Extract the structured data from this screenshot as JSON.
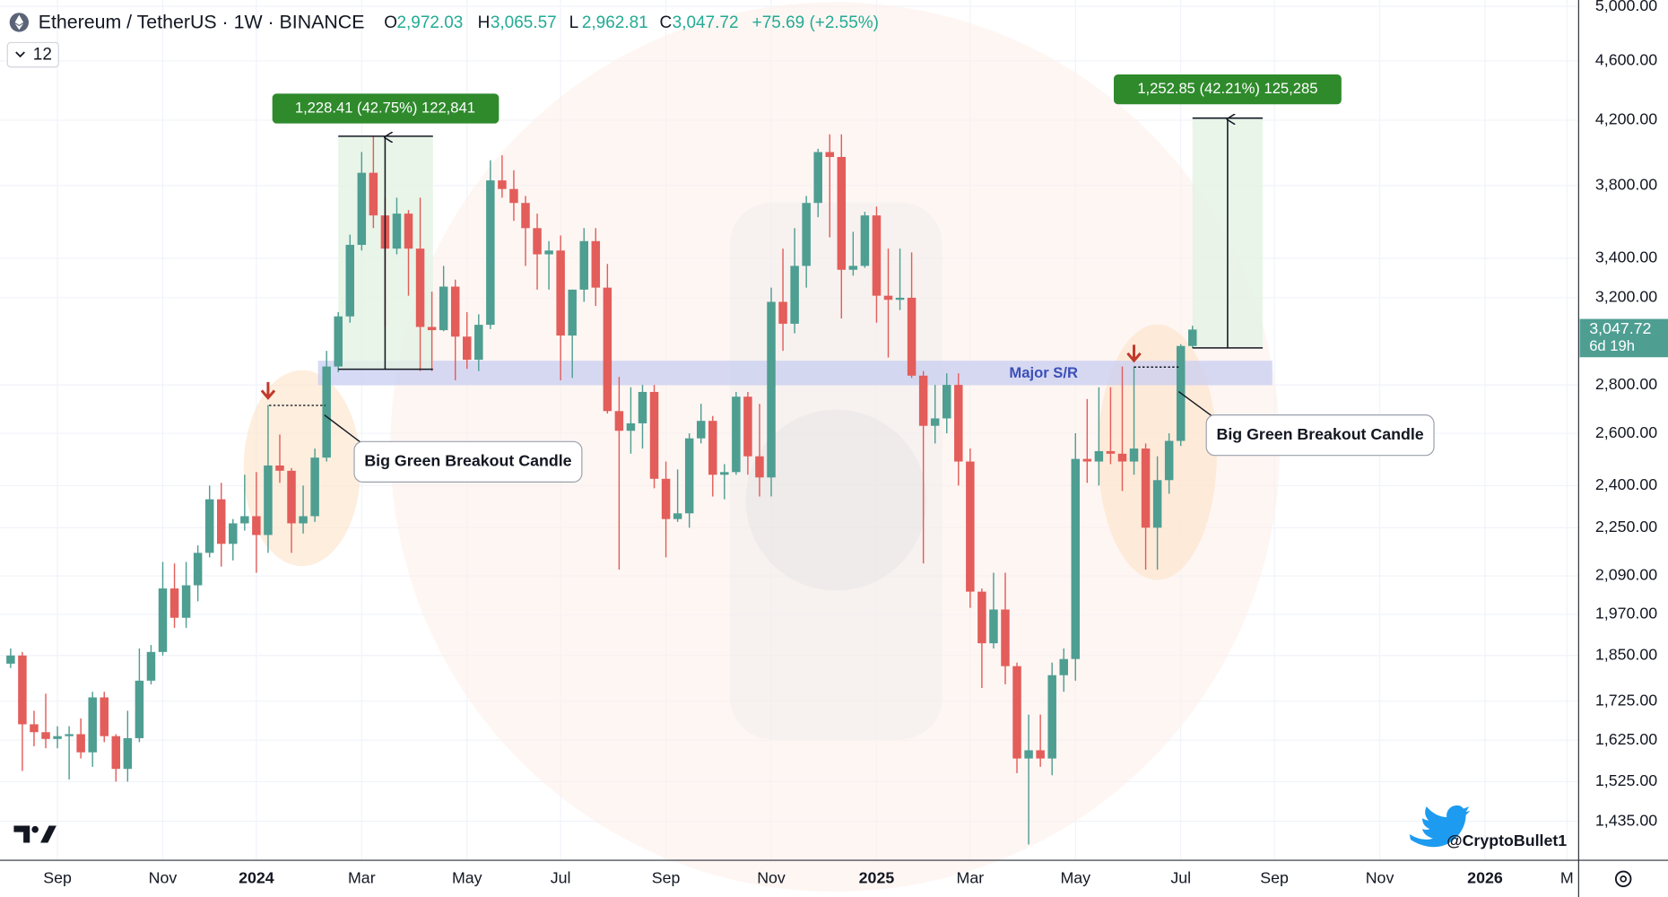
{
  "chart_data": {
    "type": "candlestick",
    "title": "Ethereum / TetherUS · 1W · BINANCE",
    "legend_values": [
      {
        "label": "O",
        "value": "2,972.03"
      },
      {
        "label": "H",
        "value": "3,065.57"
      },
      {
        "label": "L",
        "value": "2,962.81"
      },
      {
        "label": "C",
        "value": "3,047.72"
      }
    ],
    "change": "+75.69 (+2.55%)",
    "indicator_count": "12",
    "last_price_label": "3,047.72",
    "countdown": "6d 19h",
    "log_scale": true,
    "grid": true,
    "up_color": "#4e9e92",
    "down_color": "#e35d5a",
    "ylim": [
      1353,
      5049
    ],
    "yticks": [
      {
        "value": 1435,
        "label": "1,435.00"
      },
      {
        "value": 1525,
        "label": "1,525.00"
      },
      {
        "value": 1625,
        "label": "1,625.00"
      },
      {
        "value": 1725,
        "label": "1,725.00"
      },
      {
        "value": 1850,
        "label": "1,850.00"
      },
      {
        "value": 1970,
        "label": "1,970.00"
      },
      {
        "value": 2090,
        "label": "2,090.00"
      },
      {
        "value": 2250,
        "label": "2,250.00"
      },
      {
        "value": 2400,
        "label": "2,400.00"
      },
      {
        "value": 2600,
        "label": "2,600.00"
      },
      {
        "value": 2800,
        "label": "2,800.00"
      },
      {
        "value": 3200,
        "label": "3,200.00"
      },
      {
        "value": 3400,
        "label": "3,400.00"
      },
      {
        "value": 3800,
        "label": "3,800.00"
      },
      {
        "value": 4200,
        "label": "4,200.00"
      },
      {
        "value": 4600,
        "label": "4,600.00"
      },
      {
        "value": 5000,
        "label": "5,000.00"
      }
    ],
    "categories": [
      null,
      null,
      null,
      null,
      "Sep",
      null,
      null,
      null,
      null,
      null,
      null,
      null,
      null,
      "Nov",
      null,
      null,
      null,
      null,
      null,
      null,
      null,
      "2024",
      null,
      null,
      null,
      null,
      null,
      null,
      null,
      null,
      "Mar",
      null,
      null,
      null,
      null,
      null,
      null,
      null,
      null,
      "May",
      null,
      null,
      null,
      null,
      null,
      null,
      null,
      "Jul",
      null,
      null,
      null,
      null,
      null,
      null,
      null,
      null,
      "Sep",
      null,
      null,
      null,
      null,
      null,
      null,
      null,
      null,
      "Nov",
      null,
      null,
      null,
      null,
      null,
      null,
      null,
      null,
      "2025",
      null,
      null,
      null,
      null,
      null,
      null,
      null,
      "Mar",
      null,
      null,
      null,
      null,
      null,
      null,
      null,
      null,
      "May",
      null,
      null,
      null,
      null,
      null,
      null,
      null,
      null,
      "Jul",
      null,
      null,
      null,
      null,
      null,
      null,
      null,
      "Sep",
      null,
      null,
      null,
      null,
      null,
      null,
      null,
      null,
      "Nov",
      null,
      null,
      null,
      null,
      null,
      null,
      null,
      null,
      "2026",
      null,
      null,
      null,
      null,
      null,
      null,
      "M"
    ],
    "open": [
      1827,
      1850,
      1665,
      1645,
      1628,
      1635,
      1640,
      1595,
      1735,
      1635,
      1555,
      1630,
      1780,
      1860,
      2050,
      1960,
      2060,
      2165,
      2350,
      2195,
      2265,
      2290,
      2225,
      2475,
      2455,
      2265,
      2290,
      2505,
      2880,
      3110,
      3470,
      3875,
      3630,
      3450,
      3640,
      3450,
      3060,
      3045,
      3255,
      3015,
      2910,
      3070,
      3830,
      3780,
      3700,
      3560,
      3420,
      3440,
      3020,
      3240,
      3490,
      3250,
      2690,
      2610,
      2640,
      2770,
      2425,
      2280,
      2300,
      2580,
      2650,
      2440,
      2450,
      2750,
      2510,
      2430,
      3180,
      3075,
      3360,
      3700,
      4000,
      3970,
      3340,
      3360,
      3630,
      3210,
      3190,
      3200,
      2840,
      2630,
      2660,
      2800,
      2490,
      2040,
      1885,
      1985,
      1820,
      1580,
      1600,
      1580,
      1795,
      1840,
      2500,
      2490,
      2530,
      2520,
      2490,
      2540,
      2250,
      2420,
      2570,
      2972.03,
      null,
      null,
      null,
      null,
      null,
      null,
      null,
      null,
      null,
      null,
      null,
      null,
      null,
      null,
      null,
      null,
      null,
      null,
      null,
      null,
      null,
      null,
      null,
      null,
      null,
      null,
      null,
      null,
      null,
      null,
      null,
      null
    ],
    "high": [
      1870,
      1860,
      1700,
      1745,
      1660,
      1660,
      1680,
      1750,
      1750,
      1640,
      1700,
      1870,
      1880,
      2135,
      2130,
      2135,
      2190,
      2400,
      2410,
      2280,
      2440,
      2450,
      2715,
      2595,
      2465,
      2400,
      2540,
      2950,
      3130,
      3525,
      4000,
      4095,
      3730,
      3730,
      3660,
      3730,
      3230,
      3360,
      3290,
      3130,
      3120,
      3950,
      3980,
      3890,
      3740,
      3640,
      3490,
      3520,
      3240,
      3560,
      3560,
      3370,
      2835,
      2790,
      2800,
      2800,
      2490,
      2460,
      2600,
      2720,
      2670,
      2480,
      2770,
      2770,
      2720,
      3250,
      3450,
      3560,
      3740,
      4020,
      4110,
      4110,
      3540,
      3650,
      3680,
      3450,
      3450,
      3430,
      2860,
      2800,
      2850,
      2850,
      2540,
      2050,
      2100,
      2100,
      1830,
      1690,
      1690,
      1830,
      1870,
      2600,
      2740,
      2790,
      2790,
      2880,
      2880,
      2560,
      2510,
      2600,
      2980,
      3065.57,
      null,
      null,
      null,
      null,
      null,
      null,
      null,
      null,
      null,
      null,
      null,
      null,
      null,
      null,
      null,
      null,
      null,
      null,
      null,
      null,
      null,
      null,
      null,
      null,
      null,
      null,
      null,
      null,
      null,
      null,
      null,
      null
    ],
    "low": [
      1815,
      1550,
      1610,
      1605,
      1605,
      1530,
      1580,
      1560,
      1620,
      1525,
      1525,
      1620,
      1770,
      1850,
      1930,
      1930,
      2010,
      2150,
      2120,
      2140,
      2240,
      2100,
      2165,
      2410,
      2165,
      2230,
      2270,
      2490,
      2855,
      3080,
      3440,
      3560,
      3060,
      3420,
      3210,
      2860,
      2860,
      3040,
      2820,
      2870,
      2860,
      3050,
      3730,
      3600,
      3360,
      3240,
      3240,
      2820,
      2830,
      3180,
      3160,
      2680,
      2110,
      2520,
      2540,
      2390,
      2150,
      2270,
      2250,
      2560,
      2360,
      2350,
      2440,
      2440,
      2360,
      2360,
      2950,
      3030,
      3250,
      3620,
      3510,
      3100,
      3310,
      3350,
      3080,
      2920,
      3140,
      2830,
      2130,
      2560,
      2600,
      2400,
      1990,
      1760,
      1870,
      1770,
      1545,
      1385,
      1560,
      1540,
      1750,
      1780,
      2410,
      2400,
      2480,
      2380,
      2440,
      2110,
      2110,
      2370,
      2550,
      2962.81,
      null,
      null,
      null,
      null,
      null,
      null,
      null,
      null,
      null,
      null,
      null,
      null,
      null,
      null,
      null,
      null,
      null,
      null,
      null,
      null,
      null,
      null,
      null,
      null,
      null,
      null,
      null,
      null,
      null,
      null,
      null,
      null
    ],
    "close": [
      1850,
      1665,
      1645,
      1628,
      1635,
      1640,
      1595,
      1735,
      1635,
      1555,
      1630,
      1780,
      1860,
      2050,
      1960,
      2060,
      2165,
      2350,
      2195,
      2265,
      2290,
      2225,
      2475,
      2455,
      2265,
      2290,
      2505,
      2880,
      3110,
      3470,
      3875,
      3630,
      3450,
      3640,
      3450,
      3060,
      3045,
      3255,
      3015,
      2910,
      3070,
      3830,
      3780,
      3700,
      3560,
      3420,
      3440,
      3020,
      3240,
      3490,
      3250,
      2690,
      2610,
      2640,
      2770,
      2425,
      2280,
      2300,
      2580,
      2650,
      2440,
      2450,
      2750,
      2510,
      2430,
      3180,
      3075,
      3360,
      3700,
      4000,
      3970,
      3340,
      3360,
      3630,
      3210,
      3190,
      3200,
      2840,
      2630,
      2660,
      2800,
      2490,
      2040,
      1885,
      1985,
      1820,
      1580,
      1600,
      1580,
      1795,
      1840,
      2500,
      2490,
      2530,
      2520,
      2490,
      2540,
      2250,
      2420,
      2570,
      2972.03,
      3047.72,
      null,
      null,
      null,
      null,
      null,
      null,
      null,
      null,
      null,
      null,
      null,
      null,
      null,
      null,
      null,
      null,
      null,
      null,
      null,
      null,
      null,
      null,
      null,
      null,
      null,
      null,
      null,
      null,
      null,
      null,
      null,
      null
    ],
    "annotations": {
      "measure_1": "1,228.41 (42.75%) 122,841",
      "measure_2": "1,252.85 (42.21%) 125,285",
      "callout_1": "Big Green Breakout Candle",
      "callout_2": "Big Green Breakout Candle",
      "sr_label": "Major S/R"
    },
    "credit": "@CryptoBullet1"
  }
}
